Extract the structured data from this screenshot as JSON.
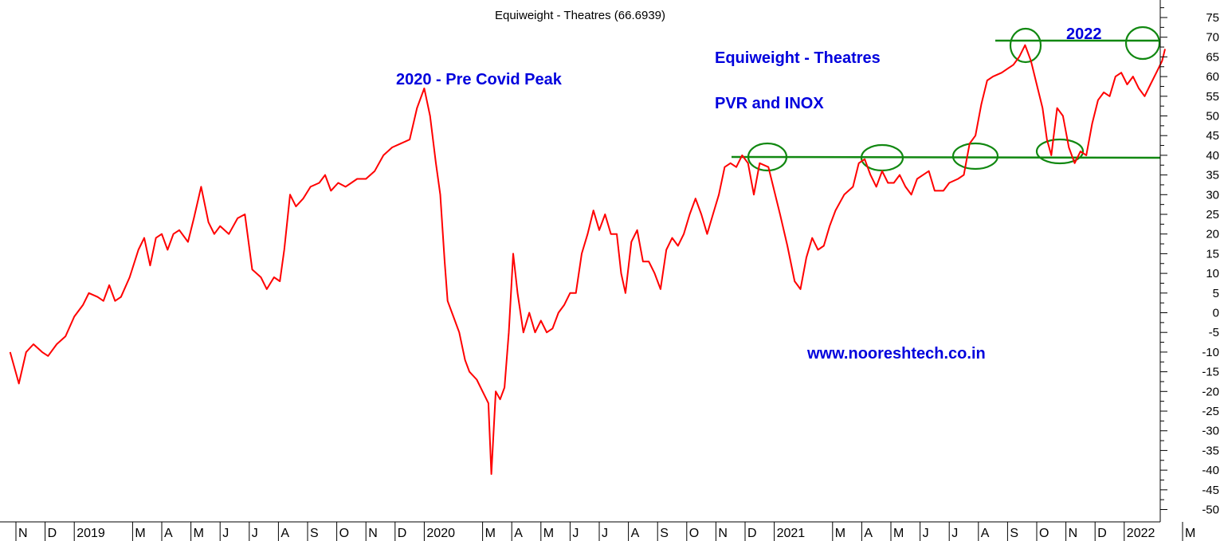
{
  "chart_data": {
    "type": "line",
    "title": "Equiweight - Theatres (66.6939)",
    "ylim": [
      -52,
      78
    ],
    "grid": false,
    "y_ticks": [
      75,
      70,
      65,
      60,
      55,
      50,
      45,
      40,
      35,
      30,
      25,
      20,
      15,
      10,
      5,
      0,
      -5,
      -10,
      -15,
      -20,
      -25,
      -30,
      -35,
      -40,
      -45,
      -50
    ],
    "x_ticks": [
      "N",
      "D",
      "2019",
      "M",
      "A",
      "M",
      "J",
      "J",
      "A",
      "S",
      "O",
      "N",
      "D",
      "2020",
      "M",
      "A",
      "M",
      "J",
      "J",
      "A",
      "S",
      "O",
      "N",
      "D",
      "2021",
      "M",
      "A",
      "M",
      "J",
      "J",
      "A",
      "S",
      "O",
      "N",
      "D",
      "2022",
      "M"
    ],
    "x_tick_months": [
      0,
      1,
      2,
      4,
      5,
      6,
      7,
      8,
      9,
      10,
      11,
      12,
      13,
      14,
      16,
      17,
      18,
      19,
      20,
      21,
      22,
      23,
      24,
      25,
      26,
      28,
      29,
      30,
      31,
      32,
      33,
      34,
      35,
      36,
      37,
      38,
      40
    ],
    "series": [
      {
        "color": "#ff0000",
        "points": [
          [
            -0.2,
            -10
          ],
          [
            0.1,
            -18
          ],
          [
            0.35,
            -10
          ],
          [
            0.6,
            -8
          ],
          [
            0.9,
            -10
          ],
          [
            1.1,
            -11
          ],
          [
            1.4,
            -8
          ],
          [
            1.7,
            -6
          ],
          [
            2.0,
            -1
          ],
          [
            2.3,
            2
          ],
          [
            2.5,
            5
          ],
          [
            2.8,
            4
          ],
          [
            3.0,
            3
          ],
          [
            3.2,
            7
          ],
          [
            3.4,
            3
          ],
          [
            3.6,
            4
          ],
          [
            3.9,
            9
          ],
          [
            4.2,
            16
          ],
          [
            4.4,
            19
          ],
          [
            4.6,
            12
          ],
          [
            4.8,
            19
          ],
          [
            5.0,
            20
          ],
          [
            5.2,
            16
          ],
          [
            5.4,
            20
          ],
          [
            5.6,
            21
          ],
          [
            5.9,
            18
          ],
          [
            6.1,
            24
          ],
          [
            6.35,
            32
          ],
          [
            6.6,
            23
          ],
          [
            6.8,
            20
          ],
          [
            7.0,
            22
          ],
          [
            7.3,
            20
          ],
          [
            7.6,
            24
          ],
          [
            7.85,
            25
          ],
          [
            8.1,
            11
          ],
          [
            8.4,
            9
          ],
          [
            8.6,
            6
          ],
          [
            8.85,
            9
          ],
          [
            9.05,
            8
          ],
          [
            9.2,
            16
          ],
          [
            9.4,
            30
          ],
          [
            9.6,
            27
          ],
          [
            9.85,
            29
          ],
          [
            10.1,
            32
          ],
          [
            10.4,
            33
          ],
          [
            10.6,
            35
          ],
          [
            10.8,
            31
          ],
          [
            11.05,
            33
          ],
          [
            11.3,
            32
          ],
          [
            11.5,
            33
          ],
          [
            11.7,
            34
          ],
          [
            12.0,
            34
          ],
          [
            12.3,
            36
          ],
          [
            12.6,
            40
          ],
          [
            12.9,
            42
          ],
          [
            13.2,
            43
          ],
          [
            13.5,
            44
          ],
          [
            13.75,
            52
          ],
          [
            14.0,
            57
          ],
          [
            14.2,
            50
          ],
          [
            14.4,
            38
          ],
          [
            14.55,
            30
          ],
          [
            14.7,
            13
          ],
          [
            14.8,
            3
          ],
          [
            15.0,
            -1
          ],
          [
            15.2,
            -5
          ],
          [
            15.4,
            -12
          ],
          [
            15.55,
            -15
          ],
          [
            15.8,
            -17
          ],
          [
            16.0,
            -20
          ],
          [
            16.2,
            -23
          ],
          [
            16.3,
            -41
          ],
          [
            16.45,
            -20
          ],
          [
            16.6,
            -22
          ],
          [
            16.75,
            -19
          ],
          [
            16.9,
            -5
          ],
          [
            17.05,
            15
          ],
          [
            17.2,
            5
          ],
          [
            17.4,
            -5
          ],
          [
            17.6,
            0
          ],
          [
            17.8,
            -5
          ],
          [
            18.0,
            -2
          ],
          [
            18.2,
            -5
          ],
          [
            18.4,
            -4
          ],
          [
            18.6,
            0
          ],
          [
            18.8,
            2
          ],
          [
            19.0,
            5
          ],
          [
            19.2,
            5
          ],
          [
            19.4,
            15
          ],
          [
            19.6,
            20
          ],
          [
            19.8,
            26
          ],
          [
            20.0,
            21
          ],
          [
            20.2,
            25
          ],
          [
            20.4,
            20
          ],
          [
            20.6,
            20
          ],
          [
            20.75,
            10
          ],
          [
            20.9,
            5
          ],
          [
            21.1,
            18
          ],
          [
            21.3,
            21
          ],
          [
            21.5,
            13
          ],
          [
            21.7,
            13
          ],
          [
            21.9,
            10
          ],
          [
            22.1,
            6
          ],
          [
            22.3,
            16
          ],
          [
            22.5,
            19
          ],
          [
            22.7,
            17
          ],
          [
            22.9,
            20
          ],
          [
            23.1,
            25
          ],
          [
            23.3,
            29
          ],
          [
            23.5,
            25
          ],
          [
            23.7,
            20
          ],
          [
            23.9,
            25
          ],
          [
            24.1,
            30
          ],
          [
            24.3,
            37
          ],
          [
            24.5,
            38
          ],
          [
            24.7,
            37
          ],
          [
            24.9,
            40
          ],
          [
            25.1,
            38
          ],
          [
            25.3,
            30
          ],
          [
            25.5,
            38
          ],
          [
            25.8,
            37
          ],
          [
            26.0,
            31
          ],
          [
            26.2,
            25
          ],
          [
            26.45,
            17
          ],
          [
            26.7,
            8
          ],
          [
            26.9,
            6
          ],
          [
            27.1,
            14
          ],
          [
            27.3,
            19
          ],
          [
            27.5,
            16
          ],
          [
            27.7,
            17
          ],
          [
            27.9,
            22
          ],
          [
            28.1,
            26
          ],
          [
            28.4,
            30
          ],
          [
            28.7,
            32
          ],
          [
            28.9,
            38
          ],
          [
            29.1,
            39
          ],
          [
            29.3,
            35
          ],
          [
            29.5,
            32
          ],
          [
            29.7,
            36
          ],
          [
            29.9,
            33
          ],
          [
            30.1,
            33
          ],
          [
            30.3,
            35
          ],
          [
            30.5,
            32
          ],
          [
            30.7,
            30
          ],
          [
            30.9,
            34
          ],
          [
            31.1,
            35
          ],
          [
            31.3,
            36
          ],
          [
            31.5,
            31
          ],
          [
            31.8,
            31
          ],
          [
            32.0,
            33
          ],
          [
            32.3,
            34
          ],
          [
            32.5,
            35
          ],
          [
            32.7,
            43
          ],
          [
            32.9,
            45
          ],
          [
            33.1,
            53
          ],
          [
            33.3,
            59
          ],
          [
            33.5,
            60
          ],
          [
            33.8,
            61
          ],
          [
            34.0,
            62
          ],
          [
            34.2,
            63
          ],
          [
            34.4,
            65
          ],
          [
            34.6,
            68
          ],
          [
            34.8,
            64
          ],
          [
            35.0,
            58
          ],
          [
            35.2,
            52
          ],
          [
            35.35,
            44
          ],
          [
            35.5,
            40
          ],
          [
            35.7,
            52
          ],
          [
            35.9,
            50
          ],
          [
            36.1,
            42
          ],
          [
            36.3,
            38
          ],
          [
            36.5,
            41
          ],
          [
            36.7,
            40
          ],
          [
            36.9,
            48
          ],
          [
            37.1,
            54
          ],
          [
            37.3,
            56
          ],
          [
            37.5,
            55
          ],
          [
            37.7,
            60
          ],
          [
            37.9,
            61
          ],
          [
            38.1,
            58
          ],
          [
            38.3,
            60
          ],
          [
            38.5,
            57
          ],
          [
            38.7,
            55
          ],
          [
            38.9,
            58
          ],
          [
            39.1,
            61
          ],
          [
            39.3,
            64
          ],
          [
            39.4,
            67
          ]
        ]
      }
    ],
    "annotations": {
      "peak": "2020 - Pre Covid Peak",
      "line1": "Equiweight  - Theatres",
      "line2": "PVR and INOX",
      "year_2022": "2022",
      "website": "www.nooreshtech.co.in"
    },
    "overlay_color": "#118811",
    "text_color": "#0000dd"
  }
}
